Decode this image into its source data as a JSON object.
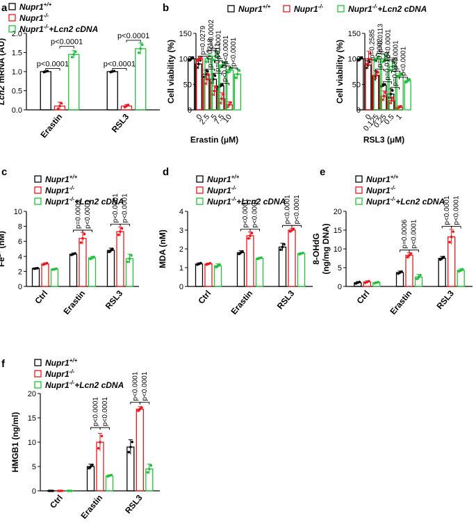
{
  "colors": {
    "group1": "#000000",
    "group2": "#e8171b",
    "group3": "#1fbf3a",
    "axis": "#000000"
  },
  "legend": [
    {
      "base": "Nupr1",
      "sup": "+/+",
      "suffix": ""
    },
    {
      "base": "Nupr1",
      "sup": "-/-",
      "suffix": ""
    },
    {
      "base": "Nupr1",
      "sup": "-/-",
      "suffix": "+Lcn2 cDNA"
    }
  ],
  "chart_data": [
    {
      "panel": "a",
      "type": "bar",
      "ylabel_italic": "Lcn2",
      "ylabel_rest": " mRNA (AU)",
      "ylim": [
        0,
        2.0
      ],
      "yticks": [
        "0.0",
        "0.5",
        "1.0",
        "1.5",
        "2.0"
      ],
      "categories": [
        "Erastin",
        "RSL3"
      ],
      "series": [
        {
          "name": "Nupr1+/+",
          "values": [
            1.0,
            1.0
          ],
          "errors": [
            0.02,
            0.02
          ]
        },
        {
          "name": "Nupr1-/-",
          "values": [
            0.1,
            0.1
          ],
          "errors": [
            0.1,
            0.04
          ]
        },
        {
          "name": "Nupr1-/-+Lcn2 cDNA",
          "values": [
            1.45,
            1.6
          ],
          "errors": [
            0.1,
            0.15
          ]
        }
      ],
      "annotations": [
        {
          "cat": 0,
          "from": 0,
          "to": 1,
          "text": "p<0.0001",
          "y": 1.08
        },
        {
          "cat": 0,
          "from": 1,
          "to": 2,
          "text": "p<0.0001",
          "y": 1.66
        },
        {
          "cat": 1,
          "from": 0,
          "to": 1,
          "text": "p<0.0001",
          "y": 1.08
        },
        {
          "cat": 1,
          "from": 1,
          "to": 2,
          "text": "p<0.0001",
          "y": 1.82
        }
      ],
      "legend_position": "top-left"
    },
    {
      "panel": "b1",
      "type": "bar",
      "ylabel": "Cell viability (%)",
      "xlabel": "Erastin (μM)",
      "ylim": [
        0,
        150
      ],
      "yticks": [
        "0",
        "50",
        "100",
        "150"
      ],
      "categories": [
        "0",
        "2.5",
        "5",
        "7.5",
        "10"
      ],
      "series": [
        {
          "name": "Nupr1+/+",
          "values": [
            100,
            90,
            70,
            60,
            47
          ],
          "errors": [
            4,
            10,
            8,
            10,
            3
          ]
        },
        {
          "name": "Nupr1-/-",
          "values": [
            100,
            60,
            37,
            22,
            10
          ],
          "errors": [
            5,
            12,
            10,
            12,
            6
          ]
        },
        {
          "name": "Nupr1-/-+Lcn2 cDNA",
          "values": [
            100,
            105,
            88,
            78,
            70
          ],
          "errors": [
            8,
            10,
            6,
            6,
            10
          ]
        }
      ],
      "annotations": [
        {
          "cat": 1,
          "from": 0,
          "to": 1,
          "text": "p=0.0279",
          "y": 105
        },
        {
          "cat": 1,
          "from": 1,
          "to": 2,
          "text": "p=0.0002",
          "y": 117
        },
        {
          "cat": 2,
          "from": 0,
          "to": 1,
          "text": "p=0.0218",
          "y": 80
        },
        {
          "cat": 2,
          "from": 1,
          "to": 2,
          "text": "p<0.0001",
          "y": 96
        },
        {
          "cat": 3,
          "from": 0,
          "to": 1,
          "text": "p=0.0011",
          "y": 72
        },
        {
          "cat": 3,
          "from": 1,
          "to": 2,
          "text": "p<0.0001",
          "y": 86
        },
        {
          "cat": 4,
          "from": 0,
          "to": 1,
          "text": "p<0.01",
          "y": 52
        },
        {
          "cat": 4,
          "from": 1,
          "to": 2,
          "text": "p<0.0001",
          "y": 82
        }
      ],
      "legend_position": "top"
    },
    {
      "panel": "b2",
      "type": "bar",
      "ylabel": "Cell viability (%)",
      "xlabel": "RSL3 (μM)",
      "ylim": [
        0,
        150
      ],
      "yticks": [
        "0",
        "50",
        "100",
        "150"
      ],
      "categories": [
        "0",
        "0.125",
        "0.25",
        "0.5",
        "1"
      ],
      "series": [
        {
          "name": "Nupr1+/+",
          "values": [
            100,
            88,
            67,
            48,
            31
          ],
          "errors": [
            4,
            8,
            10,
            3,
            10
          ]
        },
        {
          "name": "Nupr1-/-",
          "values": [
            100,
            68,
            27,
            18,
            5
          ],
          "errors": [
            15,
            8,
            10,
            7,
            3
          ]
        },
        {
          "name": "Nupr1-/-+Lcn2 cDNA",
          "values": [
            100,
            100,
            85,
            68,
            57
          ],
          "errors": [
            6,
            8,
            10,
            4,
            4
          ]
        }
      ],
      "annotations": [
        {
          "cat": 1,
          "from": 0,
          "to": 1,
          "text": "p=0.2585",
          "y": 98
        },
        {
          "cat": 1,
          "from": 1,
          "to": 2,
          "text": "p=0.0113",
          "y": 110
        },
        {
          "cat": 2,
          "from": 0,
          "to": 1,
          "text": "p=0.0002",
          "y": 80
        },
        {
          "cat": 2,
          "from": 1,
          "to": 2,
          "text": "p<0.0001",
          "y": 98
        },
        {
          "cat": 3,
          "from": 0,
          "to": 1,
          "text": "p=0.0124",
          "y": 55
        },
        {
          "cat": 3,
          "from": 1,
          "to": 2,
          "text": "p<0.0001",
          "y": 76
        },
        {
          "cat": 4,
          "from": 0,
          "to": 1,
          "text": "p=0.0378",
          "y": 44
        },
        {
          "cat": 4,
          "from": 1,
          "to": 2,
          "text": "p<0.0001",
          "y": 64
        }
      ]
    },
    {
      "panel": "c",
      "type": "bar",
      "ylabel": "Fe",
      "ylabel_sup": "2+",
      "ylabel_rest": " (nM)",
      "ylim": [
        0,
        10
      ],
      "yticks": [
        "0",
        "2",
        "4",
        "6",
        "8",
        "10"
      ],
      "categories": [
        "Ctrl",
        "Erastin",
        "RSL3"
      ],
      "series": [
        {
          "name": "Nupr1+/+",
          "values": [
            2.4,
            4.3,
            4.8
          ],
          "errors": [
            0.05,
            0.15,
            0.3
          ]
        },
        {
          "name": "Nupr1-/-",
          "values": [
            3.0,
            6.4,
            7.3
          ],
          "errors": [
            0.15,
            0.8,
            0.6
          ]
        },
        {
          "name": "Nupr1-/-+Lcn2 cDNA",
          "values": [
            2.3,
            3.8,
            3.7
          ],
          "errors": [
            0.1,
            0.2,
            0.6
          ]
        }
      ],
      "annotations": [
        {
          "cat": 1,
          "from": 0,
          "to": 1,
          "text": "p=0.0003",
          "y": 7.5
        },
        {
          "cat": 1,
          "from": 1,
          "to": 2,
          "text": "p<0.0001",
          "y": 7.5
        },
        {
          "cat": 2,
          "from": 0,
          "to": 1,
          "text": "p<0.0001",
          "y": 8.3
        },
        {
          "cat": 2,
          "from": 1,
          "to": 2,
          "text": "p<0.0001",
          "y": 8.3
        }
      ],
      "legend_position": "top-left"
    },
    {
      "panel": "d",
      "type": "bar",
      "ylabel": "MDA (nM)",
      "ylim": [
        0,
        4
      ],
      "yticks": [
        "0",
        "1",
        "2",
        "3",
        "4"
      ],
      "categories": [
        "Ctrl",
        "Erastin",
        "RSL3"
      ],
      "series": [
        {
          "name": "Nupr1+/+",
          "values": [
            1.2,
            1.8,
            2.1
          ],
          "errors": [
            0.06,
            0.1,
            0.2
          ]
        },
        {
          "name": "Nupr1-/-",
          "values": [
            1.2,
            2.7,
            3.0
          ],
          "errors": [
            0.05,
            0.2,
            0.1
          ]
        },
        {
          "name": "Nupr1-/-+Lcn2 cDNA",
          "values": [
            1.1,
            1.5,
            1.75
          ],
          "errors": [
            0.1,
            0.05,
            0.05
          ]
        }
      ],
      "annotations": [
        {
          "cat": 1,
          "from": 0,
          "to": 1,
          "text": "p<0.0001",
          "y": 3.05
        },
        {
          "cat": 1,
          "from": 1,
          "to": 2,
          "text": "p<0.0001",
          "y": 3.05
        },
        {
          "cat": 2,
          "from": 0,
          "to": 1,
          "text": "p<0.0001",
          "y": 3.25
        },
        {
          "cat": 2,
          "from": 1,
          "to": 2,
          "text": "p<0.0001",
          "y": 3.25
        }
      ],
      "legend_position": "top-left"
    },
    {
      "panel": "e",
      "type": "bar",
      "ylabel": "8-OHdG",
      "ylabel2": "(ng/mg DNA)",
      "ylim": [
        0,
        20
      ],
      "yticks": [
        "0",
        "5",
        "10",
        "15",
        "20"
      ],
      "categories": [
        "Ctrl",
        "Erastin",
        "RSL3"
      ],
      "series": [
        {
          "name": "Nupr1+/+",
          "values": [
            1.0,
            3.7,
            7.5
          ],
          "errors": [
            0.3,
            0.4,
            0.5
          ]
        },
        {
          "name": "Nupr1-/-",
          "values": [
            1.2,
            8.3,
            13.2
          ],
          "errors": [
            0.3,
            0.7,
            2.0
          ]
        },
        {
          "name": "Nupr1-/-+Lcn2 cDNA",
          "values": [
            1.0,
            2.5,
            4.3
          ],
          "errors": [
            0.2,
            0.7,
            0.4
          ]
        }
      ],
      "annotations": [
        {
          "cat": 1,
          "from": 0,
          "to": 1,
          "text": "p=0.0006",
          "y": 9.7
        },
        {
          "cat": 1,
          "from": 1,
          "to": 2,
          "text": "p<0.0001",
          "y": 9.7
        },
        {
          "cat": 2,
          "from": 0,
          "to": 1,
          "text": "p<0.0001",
          "y": 16.0
        },
        {
          "cat": 2,
          "from": 1,
          "to": 2,
          "text": "p<0.0001",
          "y": 16.0
        }
      ],
      "legend_position": "top-left"
    },
    {
      "panel": "f",
      "type": "bar",
      "ylabel": "HMGB1 (ng/ml)",
      "ylim": [
        0,
        20
      ],
      "yticks": [
        "0",
        "5",
        "10",
        "15",
        "20"
      ],
      "categories": [
        "Ctrl",
        "Erastin",
        "RSL3"
      ],
      "series": [
        {
          "name": "Nupr1+/+",
          "values": [
            0,
            5.0,
            9.0
          ],
          "errors": [
            0,
            0.5,
            1.5
          ]
        },
        {
          "name": "Nupr1-/-",
          "values": [
            0,
            10.0,
            16.8
          ],
          "errors": [
            0,
            1.8,
            0.5
          ]
        },
        {
          "name": "Nupr1-/-+Lcn2 cDNA",
          "values": [
            0,
            3.1,
            4.5
          ],
          "errors": [
            0,
            0.2,
            1.0
          ]
        }
      ],
      "annotations": [
        {
          "cat": 1,
          "from": 0,
          "to": 1,
          "text": "p<0.0001",
          "y": 13.0
        },
        {
          "cat": 1,
          "from": 1,
          "to": 2,
          "text": "p<0.0001",
          "y": 13.0
        },
        {
          "cat": 2,
          "from": 0,
          "to": 1,
          "text": "p<0.0001",
          "y": 18.2
        },
        {
          "cat": 2,
          "from": 1,
          "to": 2,
          "text": "p<0.0001",
          "y": 18.2
        }
      ],
      "legend_position": "top-left"
    }
  ]
}
